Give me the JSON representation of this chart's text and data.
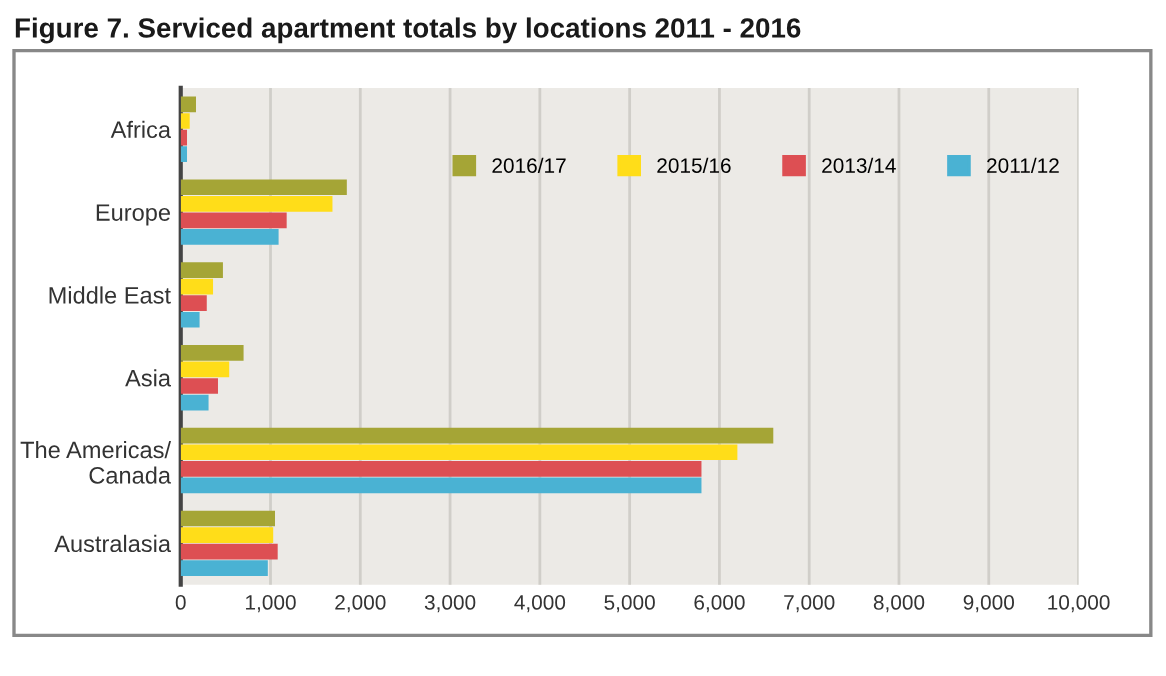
{
  "chart_data": {
    "type": "bar",
    "orientation": "horizontal",
    "title": "Figure 7. Serviced apartment totals by locations 2011 - 2016",
    "categories": [
      "Africa",
      "Europe",
      "Middle East",
      "Asia",
      "The Americas/\nCanada",
      "Australasia"
    ],
    "series": [
      {
        "name": "2016/17",
        "color": "#a5a536",
        "values": [
          170,
          1850,
          470,
          700,
          6600,
          1050
        ]
      },
      {
        "name": "2015/16",
        "color": "#ffdd19",
        "values": [
          100,
          1690,
          360,
          540,
          6200,
          1030
        ]
      },
      {
        "name": "2013/14",
        "color": "#dd4f53",
        "values": [
          70,
          1180,
          290,
          415,
          5800,
          1080
        ]
      },
      {
        "name": "2011/12",
        "color": "#4ab2d3",
        "values": [
          70,
          1090,
          210,
          310,
          5800,
          970
        ]
      }
    ],
    "xlim": [
      0,
      10000
    ],
    "xticks": [
      {
        "value": 0,
        "label": "0"
      },
      {
        "value": 1000,
        "label": "1,000"
      },
      {
        "value": 2000,
        "label": "2,000"
      },
      {
        "value": 3000,
        "label": "3,000"
      },
      {
        "value": 4000,
        "label": "4,000"
      },
      {
        "value": 5000,
        "label": "5,000"
      },
      {
        "value": 6000,
        "label": "6,000"
      },
      {
        "value": 7000,
        "label": "7,000"
      },
      {
        "value": 8000,
        "label": "8,000"
      },
      {
        "value": 9000,
        "label": "9,000"
      },
      {
        "value": 10000,
        "label": "10,000"
      }
    ],
    "grid": "x",
    "legend": "top right"
  }
}
